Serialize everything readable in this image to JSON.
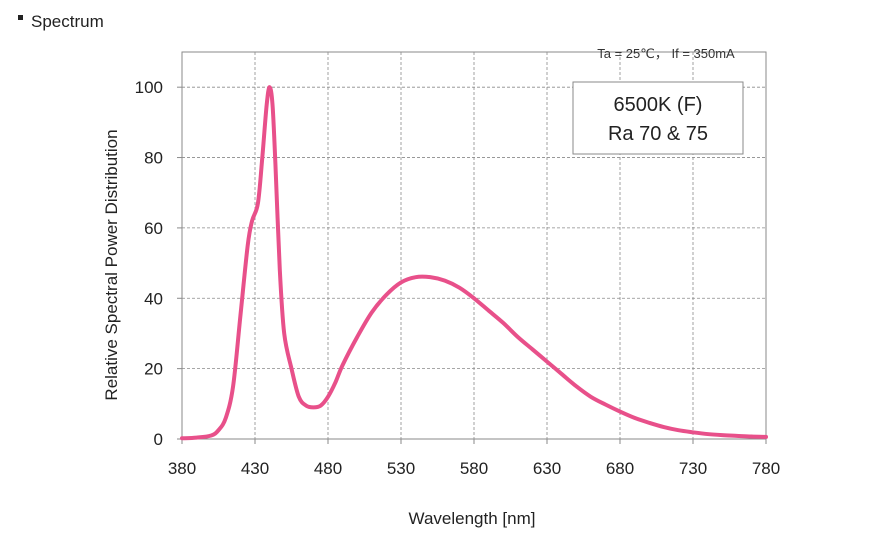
{
  "header": {
    "title": "Spectrum"
  },
  "conditions": "Ta = 25℃， If = 350mA",
  "note": {
    "line1": "6500K (F)",
    "line2": "Ra 70 & 75"
  },
  "colors": {
    "series": "#e8508a",
    "grid": "#8a8a8a",
    "text": "#222222"
  },
  "chart_data": {
    "type": "line",
    "title": "",
    "xlabel": "Wavelength [nm]",
    "ylabel": "Relative Spectral Power Distribution",
    "xlim": [
      380,
      780
    ],
    "ylim": [
      0,
      110
    ],
    "xticks": [
      380,
      430,
      480,
      530,
      580,
      630,
      680,
      730,
      780
    ],
    "yticks": [
      0,
      20,
      40,
      60,
      80,
      100
    ],
    "grid": true,
    "legend": "none",
    "series": [
      {
        "x": [
          380,
          390,
          400,
          405,
          410,
          415,
          420,
          425,
          428,
          432,
          435,
          438,
          440,
          442,
          444,
          447,
          450,
          455,
          460,
          465,
          470,
          475,
          480,
          485,
          490,
          500,
          510,
          520,
          530,
          540,
          550,
          560,
          570,
          580,
          590,
          600,
          610,
          620,
          630,
          640,
          650,
          660,
          670,
          680,
          690,
          700,
          710,
          720,
          730,
          740,
          750,
          760,
          770,
          780
        ],
        "y": [
          0.2,
          0.4,
          1,
          2.5,
          6,
          15,
          35,
          55,
          62,
          67,
          80,
          95,
          100,
          95,
          78,
          48,
          30,
          20,
          12,
          9.5,
          9,
          9.5,
          12,
          16,
          21,
          29,
          36,
          41,
          44.5,
          46,
          46,
          45,
          43,
          40,
          36.5,
          33,
          29,
          25.5,
          22,
          18.5,
          15,
          12,
          9.8,
          7.8,
          6,
          4.6,
          3.4,
          2.5,
          1.9,
          1.4,
          1.1,
          0.9,
          0.7,
          0.6
        ]
      }
    ]
  }
}
